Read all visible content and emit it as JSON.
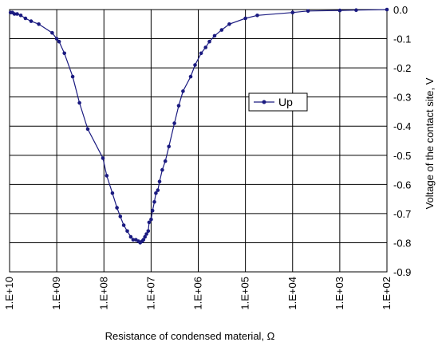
{
  "chart_data": {
    "type": "line",
    "xlabel": "Resistance of condensed material, Ω",
    "ylabel": "Voltage of the contact site, V",
    "xscale": "log",
    "x_direction": "reversed",
    "xlim": [
      10000000000.0,
      100.0
    ],
    "ylim": [
      -0.9,
      0.0
    ],
    "x_tick_labels": [
      "1.E+10",
      "1.E+09",
      "1.E+08",
      "1.E+07",
      "1.E+06",
      "1.E+05",
      "1.E+04",
      "1.E+03",
      "1.E+02"
    ],
    "y_tick_labels": [
      "0.0",
      "-0.1",
      "-0.2",
      "-0.3",
      "-0.4",
      "-0.5",
      "-0.6",
      "-0.7",
      "-0.8",
      "-0.9"
    ],
    "grid": true,
    "legend_position": "right",
    "colors": {
      "series": "#1a1a80",
      "grid": "#000000",
      "background": "#ffffff"
    },
    "series": [
      {
        "name": "Up",
        "x": [
          9550000000.0,
          8700000000.0,
          7900000000.0,
          6900000000.0,
          5800000000.0,
          4600000000.0,
          3500000000.0,
          2400000000.0,
          1250000000.0,
          1000000000.0,
          890000000.0,
          690000000.0,
          460000000.0,
          330000000.0,
          220000000.0,
          105000000.0,
          87000000.0,
          66000000.0,
          53000000.0,
          45000000.0,
          38000000.0,
          32000000.0,
          27000000.0,
          24000000.0,
          21000000.0,
          18500000.0,
          17000000.0,
          15500000.0,
          14500000.0,
          13500000.0,
          12500000.0,
          11500000.0,
          11000000.0,
          10000000.0,
          9300000.0,
          8500000.0,
          7900000.0,
          7200000.0,
          6600000.0,
          5800000.0,
          5000000.0,
          4200000.0,
          3200000.0,
          2600000.0,
          2100000.0,
          1450000.0,
          1170000.0,
          870000.0,
          700000.0,
          580000.0,
          450000.0,
          320000.0,
          220000.0,
          100000.0,
          56000.0,
          10000.0,
          4700.0,
          1000.0,
          450.0,
          100.0
        ],
        "y": [
          -0.01,
          -0.01,
          -0.015,
          -0.015,
          -0.02,
          -0.03,
          -0.04,
          -0.05,
          -0.08,
          -0.1,
          -0.11,
          -0.15,
          -0.23,
          -0.32,
          -0.41,
          -0.51,
          -0.57,
          -0.63,
          -0.68,
          -0.71,
          -0.74,
          -0.76,
          -0.78,
          -0.79,
          -0.79,
          -0.795,
          -0.8,
          -0.795,
          -0.79,
          -0.78,
          -0.77,
          -0.76,
          -0.73,
          -0.72,
          -0.69,
          -0.66,
          -0.63,
          -0.62,
          -0.59,
          -0.55,
          -0.52,
          -0.47,
          -0.39,
          -0.33,
          -0.28,
          -0.23,
          -0.19,
          -0.15,
          -0.13,
          -0.11,
          -0.09,
          -0.07,
          -0.05,
          -0.03,
          -0.02,
          -0.01,
          -0.005,
          -0.003,
          -0.002,
          0.0
        ]
      }
    ]
  }
}
